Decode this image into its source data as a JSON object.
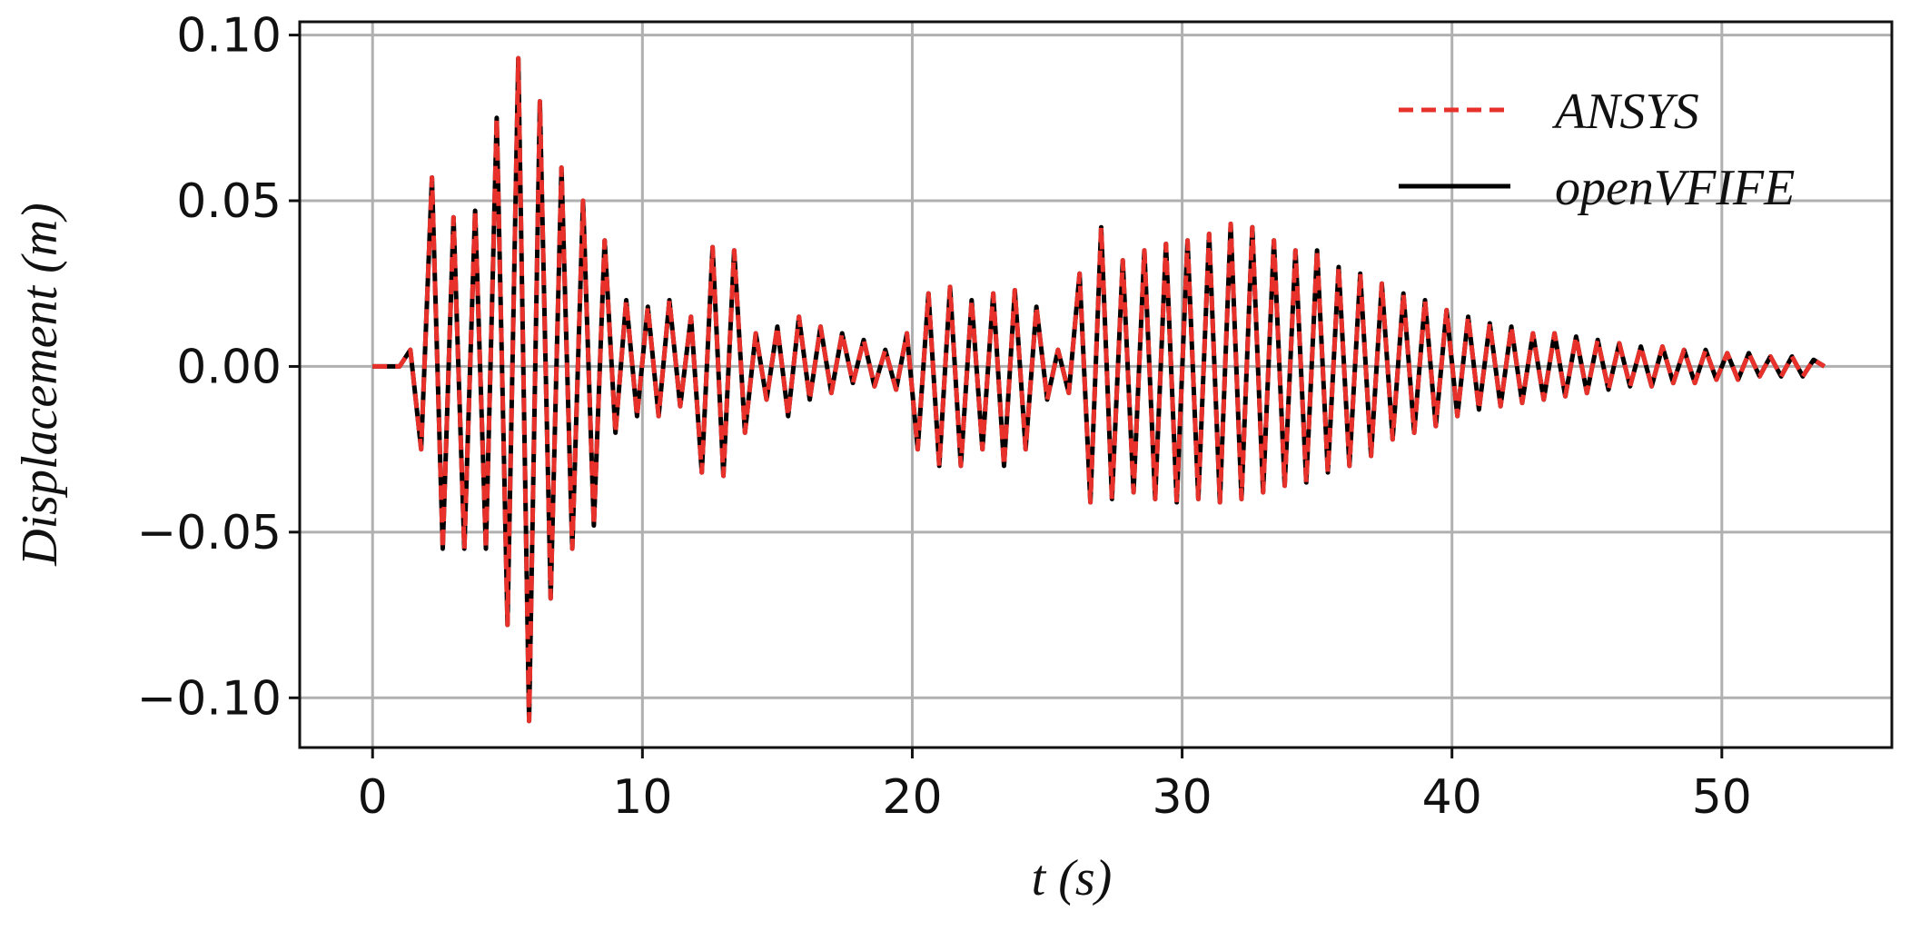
{
  "chart_data": {
    "type": "line",
    "xlabel": "t (s)",
    "ylabel": "Displacement (m)",
    "x": [
      0,
      1.0,
      1.4,
      1.8,
      2.2,
      2.6,
      3.0,
      3.4,
      3.8,
      4.2,
      4.6,
      5.0,
      5.4,
      5.8,
      6.2,
      6.6,
      7.0,
      7.4,
      7.8,
      8.2,
      8.6,
      9.0,
      9.4,
      9.8,
      10.2,
      10.6,
      11.0,
      11.4,
      11.8,
      12.2,
      12.6,
      13.0,
      13.4,
      13.8,
      14.2,
      14.6,
      15.0,
      15.4,
      15.8,
      16.2,
      16.6,
      17.0,
      17.4,
      17.8,
      18.2,
      18.6,
      19.0,
      19.4,
      19.8,
      20.2,
      20.6,
      21.0,
      21.4,
      21.8,
      22.2,
      22.6,
      23.0,
      23.4,
      23.8,
      24.2,
      24.6,
      25.0,
      25.4,
      25.8,
      26.2,
      26.6,
      27.0,
      27.4,
      27.8,
      28.2,
      28.6,
      29.0,
      29.4,
      29.8,
      30.2,
      30.6,
      31.0,
      31.4,
      31.8,
      32.2,
      32.6,
      33.0,
      33.4,
      33.8,
      34.2,
      34.6,
      35.0,
      35.4,
      35.8,
      36.2,
      36.6,
      37.0,
      37.4,
      37.8,
      38.2,
      38.6,
      39.0,
      39.4,
      39.8,
      40.2,
      40.6,
      41.0,
      41.4,
      41.8,
      42.2,
      42.6,
      43.0,
      43.4,
      43.8,
      44.2,
      44.6,
      45.0,
      45.4,
      45.8,
      46.2,
      46.6,
      47.0,
      47.4,
      47.8,
      48.2,
      48.6,
      49.0,
      49.4,
      49.8,
      50.2,
      50.6,
      51.0,
      51.4,
      51.8,
      52.2,
      52.6,
      53.0,
      53.4,
      53.8
    ],
    "series": [
      {
        "name": "openVFIFE",
        "color": "#000000",
        "style": "solid",
        "values": [
          0,
          0,
          0.005,
          -0.025,
          0.057,
          -0.055,
          0.045,
          -0.055,
          0.047,
          -0.055,
          0.075,
          -0.078,
          0.093,
          -0.107,
          0.08,
          -0.07,
          0.06,
          -0.055,
          0.05,
          -0.048,
          0.038,
          -0.02,
          0.02,
          -0.015,
          0.018,
          -0.015,
          0.02,
          -0.012,
          0.015,
          -0.032,
          0.036,
          -0.033,
          0.035,
          -0.02,
          0.01,
          -0.01,
          0.012,
          -0.015,
          0.015,
          -0.01,
          0.012,
          -0.008,
          0.01,
          -0.005,
          0.008,
          -0.006,
          0.005,
          -0.007,
          0.01,
          -0.025,
          0.022,
          -0.03,
          0.024,
          -0.03,
          0.02,
          -0.025,
          0.022,
          -0.03,
          0.023,
          -0.025,
          0.018,
          -0.01,
          0.005,
          -0.008,
          0.028,
          -0.041,
          0.042,
          -0.04,
          0.032,
          -0.038,
          0.035,
          -0.04,
          0.037,
          -0.041,
          0.038,
          -0.04,
          0.04,
          -0.041,
          0.043,
          -0.04,
          0.042,
          -0.038,
          0.038,
          -0.036,
          0.035,
          -0.035,
          0.035,
          -0.032,
          0.03,
          -0.03,
          0.028,
          -0.027,
          0.025,
          -0.022,
          0.022,
          -0.02,
          0.02,
          -0.018,
          0.017,
          -0.015,
          0.015,
          -0.013,
          0.013,
          -0.012,
          0.012,
          -0.011,
          0.01,
          -0.01,
          0.01,
          -0.009,
          0.009,
          -0.008,
          0.008,
          -0.007,
          0.007,
          -0.006,
          0.006,
          -0.006,
          0.006,
          -0.005,
          0.005,
          -0.005,
          0.005,
          -0.004,
          0.004,
          -0.004,
          0.004,
          -0.003,
          0.003,
          -0.003,
          0.003,
          -0.003,
          0.002,
          0
        ]
      },
      {
        "name": "ANSYS",
        "color": "#e8312a",
        "style": "dashed",
        "values": [
          0,
          0,
          0.005,
          -0.025,
          0.057,
          -0.055,
          0.045,
          -0.055,
          0.047,
          -0.055,
          0.075,
          -0.078,
          0.093,
          -0.107,
          0.08,
          -0.07,
          0.06,
          -0.055,
          0.05,
          -0.048,
          0.038,
          -0.02,
          0.02,
          -0.015,
          0.018,
          -0.015,
          0.02,
          -0.012,
          0.015,
          -0.032,
          0.036,
          -0.033,
          0.035,
          -0.02,
          0.01,
          -0.01,
          0.012,
          -0.015,
          0.015,
          -0.01,
          0.012,
          -0.008,
          0.01,
          -0.005,
          0.008,
          -0.006,
          0.005,
          -0.007,
          0.01,
          -0.025,
          0.022,
          -0.03,
          0.024,
          -0.03,
          0.02,
          -0.025,
          0.022,
          -0.03,
          0.023,
          -0.025,
          0.018,
          -0.01,
          0.005,
          -0.008,
          0.028,
          -0.041,
          0.042,
          -0.04,
          0.032,
          -0.038,
          0.035,
          -0.04,
          0.037,
          -0.041,
          0.038,
          -0.04,
          0.04,
          -0.041,
          0.043,
          -0.04,
          0.042,
          -0.038,
          0.038,
          -0.036,
          0.035,
          -0.035,
          0.035,
          -0.032,
          0.03,
          -0.03,
          0.028,
          -0.027,
          0.025,
          -0.022,
          0.022,
          -0.02,
          0.02,
          -0.018,
          0.017,
          -0.015,
          0.015,
          -0.013,
          0.013,
          -0.012,
          0.012,
          -0.011,
          0.01,
          -0.01,
          0.01,
          -0.009,
          0.009,
          -0.008,
          0.008,
          -0.007,
          0.007,
          -0.006,
          0.006,
          -0.006,
          0.006,
          -0.005,
          0.005,
          -0.005,
          0.005,
          -0.004,
          0.004,
          -0.004,
          0.004,
          -0.003,
          0.003,
          -0.003,
          0.003,
          -0.003,
          0.002,
          0
        ]
      }
    ],
    "legend_order": [
      "ANSYS",
      "openVFIFE"
    ],
    "xlim": [
      -2.7,
      56.3
    ],
    "ylim": [
      -0.115,
      0.104
    ],
    "xticks": [
      0,
      10,
      20,
      30,
      40,
      50
    ],
    "yticks": [
      {
        "value": -0.1,
        "label": "−0.10"
      },
      {
        "value": -0.05,
        "label": "−0.05"
      },
      {
        "value": 0,
        "label": "0.00"
      },
      {
        "value": 0.05,
        "label": "0.05"
      },
      {
        "value": 0.1,
        "label": "0.10"
      }
    ],
    "grid": true,
    "legend": "upper right"
  }
}
